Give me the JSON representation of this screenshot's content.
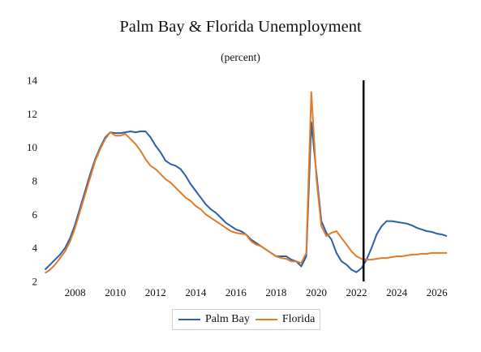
{
  "chart_data": {
    "type": "line",
    "title": "Palm Bay & Florida Unemployment",
    "subtitle": "(percent)",
    "xlabel": "",
    "ylabel": "",
    "xlim": [
      2006.4,
      2026.7
    ],
    "ylim": [
      2,
      14
    ],
    "x_ticks": [
      2008,
      2010,
      2012,
      2014,
      2016,
      2018,
      2020,
      2022,
      2024,
      2026
    ],
    "x_tick_labels": [
      "2008",
      "2010",
      "2012",
      "2014",
      "2016",
      "2018",
      "2020",
      "2022",
      "2024",
      "2026"
    ],
    "y_ticks": [
      2,
      4,
      6,
      8,
      10,
      12,
      14
    ],
    "y_tick_labels": [
      "2",
      "4",
      "6",
      "8",
      "10",
      "12",
      "14"
    ],
    "grid": false,
    "legend_position": "bottom-center",
    "forecast_line_x": 2022.35,
    "series": [
      {
        "name": "Palm Bay",
        "color": "#2b5fa6",
        "points": [
          [
            2006.5,
            2.7
          ],
          [
            2006.75,
            3.0
          ],
          [
            2007.0,
            3.3
          ],
          [
            2007.25,
            3.6
          ],
          [
            2007.5,
            4.0
          ],
          [
            2007.75,
            4.6
          ],
          [
            2008.0,
            5.4
          ],
          [
            2008.25,
            6.4
          ],
          [
            2008.5,
            7.4
          ],
          [
            2008.75,
            8.4
          ],
          [
            2009.0,
            9.3
          ],
          [
            2009.25,
            10.0
          ],
          [
            2009.5,
            10.6
          ],
          [
            2009.75,
            10.9
          ],
          [
            2010.0,
            10.85
          ],
          [
            2010.25,
            10.85
          ],
          [
            2010.5,
            10.9
          ],
          [
            2010.75,
            10.95
          ],
          [
            2011.0,
            10.9
          ],
          [
            2011.25,
            10.95
          ],
          [
            2011.5,
            10.95
          ],
          [
            2011.75,
            10.6
          ],
          [
            2012.0,
            10.1
          ],
          [
            2012.25,
            9.7
          ],
          [
            2012.5,
            9.2
          ],
          [
            2012.75,
            9.0
          ],
          [
            2013.0,
            8.9
          ],
          [
            2013.25,
            8.7
          ],
          [
            2013.5,
            8.3
          ],
          [
            2013.75,
            7.8
          ],
          [
            2014.0,
            7.4
          ],
          [
            2014.25,
            7.0
          ],
          [
            2014.5,
            6.6
          ],
          [
            2014.75,
            6.3
          ],
          [
            2015.0,
            6.1
          ],
          [
            2015.25,
            5.8
          ],
          [
            2015.5,
            5.5
          ],
          [
            2015.75,
            5.3
          ],
          [
            2016.0,
            5.1
          ],
          [
            2016.25,
            5.0
          ],
          [
            2016.5,
            4.8
          ],
          [
            2016.75,
            4.5
          ],
          [
            2017.0,
            4.3
          ],
          [
            2017.25,
            4.1
          ],
          [
            2017.5,
            3.9
          ],
          [
            2017.75,
            3.7
          ],
          [
            2018.0,
            3.5
          ],
          [
            2018.25,
            3.5
          ],
          [
            2018.5,
            3.5
          ],
          [
            2018.75,
            3.3
          ],
          [
            2019.0,
            3.2
          ],
          [
            2019.25,
            2.9
          ],
          [
            2019.5,
            3.5
          ],
          [
            2019.75,
            11.5
          ],
          [
            2020.0,
            8.5
          ],
          [
            2020.25,
            5.6
          ],
          [
            2020.5,
            4.9
          ],
          [
            2020.75,
            4.5
          ],
          [
            2021.0,
            3.7
          ],
          [
            2021.25,
            3.2
          ],
          [
            2021.5,
            3.0
          ],
          [
            2021.75,
            2.7
          ],
          [
            2022.0,
            2.55
          ],
          [
            2022.25,
            2.8
          ],
          [
            2022.5,
            3.3
          ],
          [
            2022.75,
            4.0
          ],
          [
            2023.0,
            4.8
          ],
          [
            2023.25,
            5.3
          ],
          [
            2023.5,
            5.6
          ],
          [
            2023.75,
            5.6
          ],
          [
            2024.0,
            5.55
          ],
          [
            2024.25,
            5.5
          ],
          [
            2024.5,
            5.45
          ],
          [
            2024.75,
            5.35
          ],
          [
            2025.0,
            5.2
          ],
          [
            2025.25,
            5.1
          ],
          [
            2025.5,
            5.0
          ],
          [
            2025.75,
            4.95
          ],
          [
            2026.0,
            4.85
          ],
          [
            2026.25,
            4.8
          ],
          [
            2026.5,
            4.7
          ]
        ]
      },
      {
        "name": "Florida",
        "color": "#e07b2a",
        "points": [
          [
            2006.5,
            2.5
          ],
          [
            2006.75,
            2.7
          ],
          [
            2007.0,
            3.0
          ],
          [
            2007.25,
            3.4
          ],
          [
            2007.5,
            3.8
          ],
          [
            2007.75,
            4.4
          ],
          [
            2008.0,
            5.2
          ],
          [
            2008.25,
            6.2
          ],
          [
            2008.5,
            7.2
          ],
          [
            2008.75,
            8.2
          ],
          [
            2009.0,
            9.2
          ],
          [
            2009.25,
            9.9
          ],
          [
            2009.5,
            10.5
          ],
          [
            2009.75,
            10.9
          ],
          [
            2010.0,
            10.7
          ],
          [
            2010.25,
            10.7
          ],
          [
            2010.5,
            10.8
          ],
          [
            2010.75,
            10.5
          ],
          [
            2011.0,
            10.2
          ],
          [
            2011.25,
            9.8
          ],
          [
            2011.5,
            9.3
          ],
          [
            2011.75,
            8.9
          ],
          [
            2012.0,
            8.7
          ],
          [
            2012.25,
            8.4
          ],
          [
            2012.5,
            8.1
          ],
          [
            2012.75,
            7.9
          ],
          [
            2013.0,
            7.6
          ],
          [
            2013.25,
            7.3
          ],
          [
            2013.5,
            7.0
          ],
          [
            2013.75,
            6.8
          ],
          [
            2014.0,
            6.5
          ],
          [
            2014.25,
            6.3
          ],
          [
            2014.5,
            6.0
          ],
          [
            2014.75,
            5.8
          ],
          [
            2015.0,
            5.6
          ],
          [
            2015.25,
            5.4
          ],
          [
            2015.5,
            5.2
          ],
          [
            2015.75,
            5.0
          ],
          [
            2016.0,
            4.9
          ],
          [
            2016.25,
            4.85
          ],
          [
            2016.5,
            4.8
          ],
          [
            2016.75,
            4.4
          ],
          [
            2017.0,
            4.2
          ],
          [
            2017.25,
            4.1
          ],
          [
            2017.5,
            3.9
          ],
          [
            2017.75,
            3.7
          ],
          [
            2018.0,
            3.5
          ],
          [
            2018.25,
            3.4
          ],
          [
            2018.5,
            3.35
          ],
          [
            2018.75,
            3.2
          ],
          [
            2019.0,
            3.2
          ],
          [
            2019.25,
            3.1
          ],
          [
            2019.5,
            3.7
          ],
          [
            2019.75,
            13.3
          ],
          [
            2020.0,
            8.2
          ],
          [
            2020.25,
            5.3
          ],
          [
            2020.5,
            4.7
          ],
          [
            2020.75,
            4.9
          ],
          [
            2021.0,
            5.0
          ],
          [
            2021.25,
            4.6
          ],
          [
            2021.5,
            4.2
          ],
          [
            2021.75,
            3.8
          ],
          [
            2022.0,
            3.5
          ],
          [
            2022.25,
            3.35
          ],
          [
            2022.5,
            3.3
          ],
          [
            2022.75,
            3.3
          ],
          [
            2023.0,
            3.35
          ],
          [
            2023.25,
            3.4
          ],
          [
            2023.5,
            3.4
          ],
          [
            2023.75,
            3.45
          ],
          [
            2024.0,
            3.5
          ],
          [
            2024.25,
            3.5
          ],
          [
            2024.5,
            3.55
          ],
          [
            2024.75,
            3.6
          ],
          [
            2025.0,
            3.6
          ],
          [
            2025.25,
            3.65
          ],
          [
            2025.5,
            3.65
          ],
          [
            2025.75,
            3.7
          ],
          [
            2026.0,
            3.7
          ],
          [
            2026.25,
            3.7
          ],
          [
            2026.5,
            3.7
          ]
        ]
      }
    ]
  }
}
